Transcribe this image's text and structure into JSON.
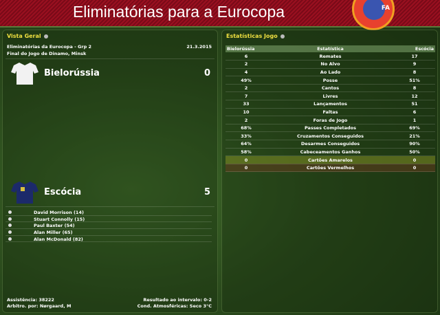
{
  "header": {
    "title": "Eliminatórias para a Eurocopa",
    "logo_text": "UEFA"
  },
  "overview": {
    "title": "Vista Geral",
    "competition": "Eliminatórias da Eurocopa - Grp 2",
    "date": "21.3.2015",
    "venue": "Final do Jogo de Dinamo, Minsk",
    "home": {
      "name": "Bielorússia",
      "score": "0"
    },
    "away": {
      "name": "Escócia",
      "score": "5"
    },
    "scorers": [
      "David Morrison (14)",
      "Stuart Connolly (15)",
      "Paul Baxter (54)",
      "Alan Miller (65)",
      "Alan McDonald (82)"
    ],
    "attendance": "Assistência: 38222",
    "referee": "Arbitro. por: Nørgaard, M",
    "halftime": "Resultado ao intervalo: 0-2",
    "weather": "Cond. Atmosféricas: Seco 3°C"
  },
  "stats": {
    "title": "Estatísticas Jogo",
    "headers": [
      "Bielorússia",
      "Estatística",
      "Escócia"
    ],
    "rows": [
      [
        "6",
        "Remates",
        "17"
      ],
      [
        "2",
        "No Alvo",
        "9"
      ],
      [
        "4",
        "Ao Lado",
        "8"
      ],
      [
        "49%",
        "Posse",
        "51%"
      ],
      [
        "2",
        "Cantos",
        "8"
      ],
      [
        "7",
        "Livres",
        "12"
      ],
      [
        "33",
        "Lançamentos",
        "51"
      ],
      [
        "10",
        "Faltas",
        "6"
      ],
      [
        "2",
        "Foras de Jogo",
        "1"
      ],
      [
        "68%",
        "Passes Completados",
        "69%"
      ],
      [
        "33%",
        "Cruzamentos Conseguidos",
        "21%"
      ],
      [
        "64%",
        "Desarmes Conseguidos",
        "90%"
      ],
      [
        "58%",
        "Cabeceamentos Ganhos",
        "50%"
      ],
      [
        "0",
        "Cartões Amarelos",
        "0"
      ],
      [
        "0",
        "Cartões Vermelhos",
        "0"
      ]
    ]
  },
  "colors": {
    "header_red": "#9a1020",
    "panel_title": "#f0e040"
  }
}
